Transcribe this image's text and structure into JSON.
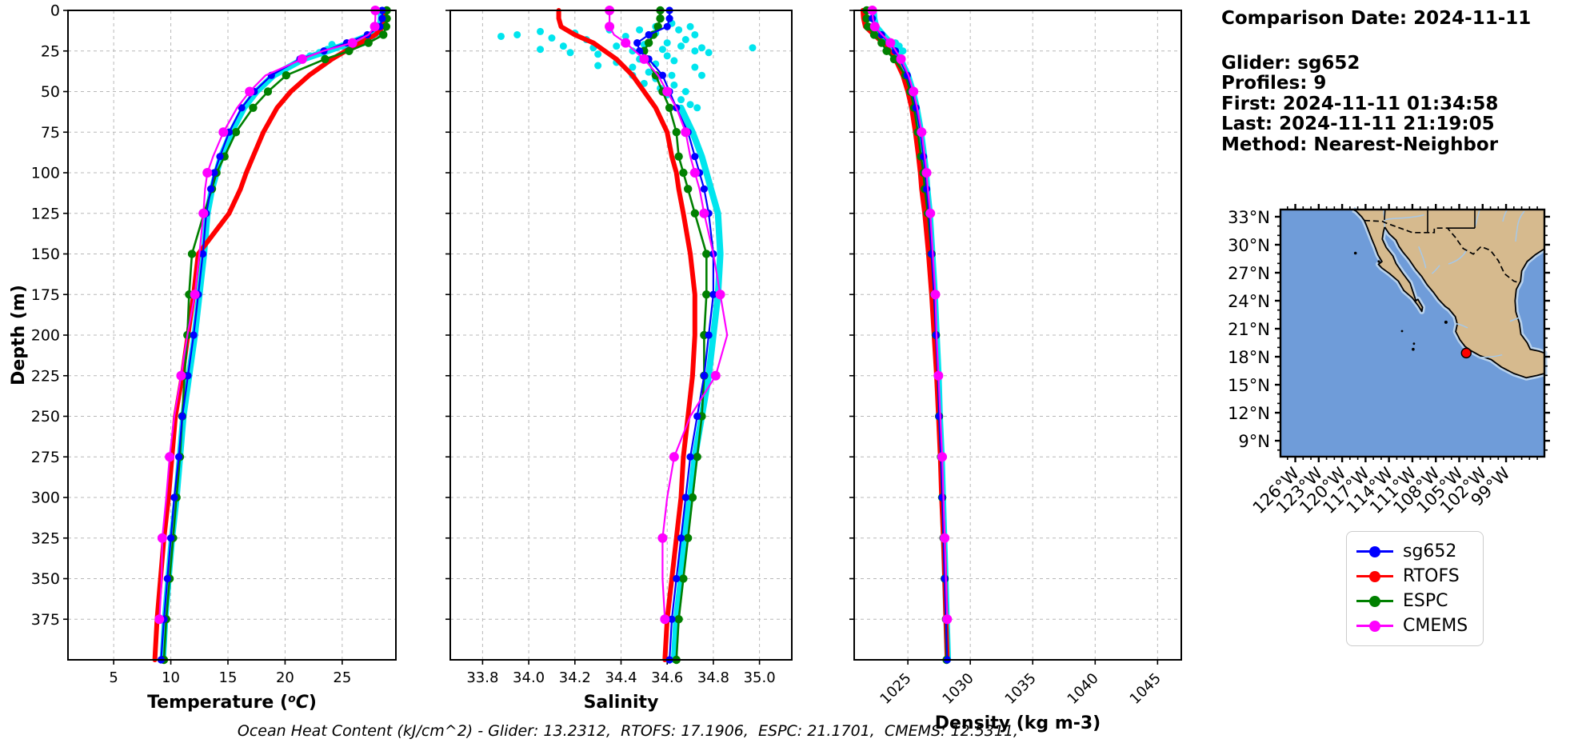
{
  "info_panel": {
    "comparison_date": "Comparison Date: 2024-11-11",
    "glider": "Glider: sg652",
    "profiles": "Profiles: 9",
    "first": "First: 2024-11-11 01:34:58",
    "last": "Last: 2024-11-11 21:19:05",
    "method": "Method: Nearest-Neighbor"
  },
  "footer": {
    "text": "Ocean Heat Content (kJ/cm^2) - Glider: 13.2312,  RTOFS: 17.1906,  ESPC: 21.1701,  CMEMS: 12.5311,"
  },
  "legend": {
    "position": "bottom-right",
    "items": [
      {
        "label": "sg652",
        "color": "#0000ff"
      },
      {
        "label": "RTOFS",
        "color": "#ff0000"
      },
      {
        "label": "ESPC",
        "color": "#008000"
      },
      {
        "label": "CMEMS",
        "color": "#ff00ff"
      }
    ]
  },
  "map": {
    "lat_ticks": [
      {
        "deg": 33,
        "label": "33°N"
      },
      {
        "deg": 30,
        "label": "30°N"
      },
      {
        "deg": 27,
        "label": "27°N"
      },
      {
        "deg": 24,
        "label": "24°N"
      },
      {
        "deg": 21,
        "label": "21°N"
      },
      {
        "deg": 18,
        "label": "18°N"
      },
      {
        "deg": 15,
        "label": "15°N"
      },
      {
        "deg": 12,
        "label": "12°N"
      },
      {
        "deg": 9,
        "label": "9°N"
      }
    ],
    "lon_ticks": [
      {
        "deg": 126,
        "label": "126°W"
      },
      {
        "deg": 123,
        "label": "123°W"
      },
      {
        "deg": 120,
        "label": "120°W"
      },
      {
        "deg": 117,
        "label": "117°W"
      },
      {
        "deg": 114,
        "label": "114°W"
      },
      {
        "deg": 111,
        "label": "111°W"
      },
      {
        "deg": 108,
        "label": "108°W"
      },
      {
        "deg": 105,
        "label": "105°W"
      },
      {
        "deg": 102,
        "label": "102°W"
      },
      {
        "deg": 99,
        "label": "99°W"
      }
    ],
    "marker": {
      "lon_w": 104.1,
      "lat_n": 18.4,
      "color": "#ff0000"
    },
    "colors": {
      "ocean": "#6f9cd9",
      "land": "#d6ba8e",
      "shelf": "#b9d2ec",
      "river": "#a6c8e8",
      "coast": "#000000"
    }
  },
  "chart_data": [
    {
      "id": "temperature",
      "type": "line",
      "xlabel": "Temperature (°C)",
      "ylabel": "Depth (m)",
      "xlim": [
        1.0,
        29.7
      ],
      "ylim": [
        400,
        0
      ],
      "grid": true,
      "xticks": [
        5,
        10,
        15,
        20,
        25
      ],
      "yticks": [
        0,
        25,
        50,
        75,
        100,
        125,
        150,
        175,
        200,
        225,
        250,
        275,
        300,
        325,
        350,
        375
      ],
      "depths": [
        0,
        5,
        10,
        15,
        20,
        25,
        30,
        40,
        50,
        60,
        75,
        90,
        100,
        110,
        125,
        150,
        175,
        200,
        225,
        250,
        275,
        300,
        325,
        350,
        375,
        400
      ],
      "series": [
        {
          "name": "glider-raw",
          "color": "#00e5ee",
          "width": 8,
          "marker": 0,
          "every": 1,
          "values": [
            28.4,
            28.4,
            28.3,
            27.5,
            25.7,
            23.7,
            21.6,
            19.0,
            17.5,
            16.4,
            15.3,
            14.4,
            14.0,
            13.6,
            13.2,
            12.9,
            12.5,
            12.1,
            11.6,
            11.1,
            10.8,
            10.5,
            10.1,
            9.8,
            9.5,
            9.3
          ]
        },
        {
          "name": "RTOFS",
          "color": "#ff0000",
          "width": 6,
          "marker": 0,
          "every": 1,
          "values": [
            28.7,
            28.7,
            28.6,
            27.9,
            26.6,
            25.3,
            24.1,
            22.1,
            20.5,
            19.3,
            18.1,
            17.2,
            16.6,
            16.1,
            15.1,
            12.4,
            12.0,
            11.5,
            11.0,
            10.4,
            10.1,
            9.8,
            9.4,
            9.1,
            8.8,
            8.6
          ]
        },
        {
          "name": "ESPC",
          "color": "#008000",
          "width": 2.6,
          "marker": 5.2,
          "every": 1,
          "values": [
            28.9,
            28.9,
            28.85,
            28.6,
            27.3,
            25.6,
            23.5,
            20.1,
            18.5,
            17.2,
            15.7,
            14.7,
            14.0,
            13.6,
            12.9,
            11.85,
            11.6,
            11.45,
            11.2,
            11.0,
            10.8,
            10.5,
            10.2,
            9.9,
            9.6,
            9.4
          ]
        },
        {
          "name": "sg652",
          "color": "#0000ff",
          "width": 2.2,
          "marker": 4.6,
          "every": 1,
          "values": [
            28.5,
            28.5,
            28.3,
            27.2,
            25.4,
            23.4,
            21.3,
            18.8,
            17.3,
            16.2,
            15.1,
            14.3,
            13.8,
            13.5,
            13.1,
            12.8,
            12.4,
            12.0,
            11.5,
            11.0,
            10.7,
            10.3,
            10.0,
            9.7,
            9.4,
            9.15
          ]
        },
        {
          "name": "CMEMS",
          "color": "#ff00ff",
          "width": 2.2,
          "marker": 6,
          "every": 2,
          "values": [
            27.9,
            27.9,
            27.85,
            27.3,
            25.9,
            23.3,
            21.5,
            18.3,
            16.9,
            15.8,
            14.6,
            13.7,
            13.2,
            13.0,
            12.85,
            12.5,
            12.1,
            11.45,
            10.9,
            10.3,
            9.9,
            9.6,
            9.25,
            9.2,
            9.0,
            null
          ]
        }
      ],
      "scatter": {
        "name": "glider-raw-scatter",
        "color": "#00e5ee",
        "size": 4.5,
        "points": [
          [
            28.1,
            14
          ],
          [
            27.6,
            16
          ],
          [
            27.0,
            18
          ],
          [
            26.4,
            19
          ],
          [
            25.7,
            21
          ],
          [
            26.8,
            20
          ],
          [
            25.1,
            22
          ],
          [
            24.4,
            23
          ],
          [
            23.7,
            24
          ],
          [
            24.1,
            21
          ],
          [
            23.0,
            26
          ],
          [
            22.2,
            28
          ]
        ]
      }
    },
    {
      "id": "salinity",
      "type": "line",
      "xlabel": "Salinity",
      "ylabel": "",
      "xlim": [
        33.66,
        35.14
      ],
      "ylim": [
        400,
        0
      ],
      "grid": true,
      "xticks": [
        33.8,
        34.0,
        34.2,
        34.4,
        34.6,
        34.8,
        35.0
      ],
      "yticks": [
        0,
        25,
        50,
        75,
        100,
        125,
        150,
        175,
        200,
        225,
        250,
        275,
        300,
        325,
        350,
        375
      ],
      "depths": [
        0,
        5,
        10,
        15,
        20,
        25,
        30,
        40,
        50,
        60,
        75,
        90,
        100,
        110,
        125,
        150,
        175,
        200,
        225,
        250,
        275,
        300,
        325,
        350,
        375,
        400
      ],
      "series": [
        {
          "name": "glider-raw",
          "color": "#00e5ee",
          "width": 8,
          "marker": 0,
          "every": 1,
          "values": [
            null,
            null,
            null,
            null,
            null,
            null,
            null,
            null,
            null,
            34.66,
            34.71,
            34.75,
            34.77,
            34.79,
            34.82,
            34.83,
            34.82,
            34.8,
            34.78,
            34.75,
            34.72,
            34.7,
            34.67,
            34.66,
            34.64,
            34.63
          ]
        },
        {
          "name": "RTOFS",
          "color": "#ff0000",
          "width": 6,
          "marker": 0,
          "every": 1,
          "values": [
            34.13,
            34.13,
            34.14,
            34.2,
            34.28,
            34.33,
            34.38,
            34.45,
            34.5,
            34.55,
            34.6,
            34.62,
            34.64,
            34.65,
            34.67,
            34.7,
            34.72,
            34.72,
            34.71,
            34.69,
            34.67,
            34.66,
            34.64,
            34.62,
            34.6,
            34.59
          ]
        },
        {
          "name": "ESPC",
          "color": "#008000",
          "width": 2.6,
          "marker": 5.2,
          "every": 1,
          "values": [
            34.57,
            34.57,
            34.56,
            34.54,
            34.52,
            34.5,
            34.51,
            34.55,
            34.58,
            34.61,
            34.64,
            34.65,
            34.67,
            34.69,
            34.72,
            34.77,
            34.77,
            34.76,
            34.76,
            34.75,
            34.73,
            34.71,
            34.69,
            34.67,
            34.65,
            34.64
          ]
        },
        {
          "name": "sg652",
          "color": "#0000ff",
          "width": 2.2,
          "marker": 4.6,
          "every": 1,
          "values": [
            34.61,
            34.61,
            34.6,
            34.52,
            34.47,
            34.48,
            34.52,
            34.58,
            34.61,
            34.64,
            34.69,
            34.72,
            34.74,
            34.76,
            34.78,
            34.8,
            34.8,
            34.78,
            34.76,
            34.73,
            34.7,
            34.68,
            34.66,
            34.64,
            34.62,
            34.61
          ]
        },
        {
          "name": "CMEMS",
          "color": "#ff00ff",
          "width": 2.2,
          "marker": 6,
          "every": 2,
          "values": [
            34.35,
            34.35,
            34.35,
            34.37,
            34.42,
            34.46,
            34.5,
            34.56,
            34.6,
            34.64,
            34.68,
            34.7,
            34.72,
            34.74,
            34.76,
            34.8,
            34.83,
            34.86,
            34.81,
            34.7,
            34.63,
            34.6,
            34.58,
            34.58,
            34.59,
            null
          ]
        }
      ],
      "scatter": {
        "name": "glider-raw-scatter",
        "color": "#00e5ee",
        "size": 4.5,
        "points": [
          [
            34.62,
            8
          ],
          [
            34.55,
            10
          ],
          [
            34.48,
            12
          ],
          [
            34.35,
            12
          ],
          [
            34.2,
            14
          ],
          [
            34.05,
            13
          ],
          [
            33.95,
            15
          ],
          [
            33.88,
            16
          ],
          [
            34.1,
            17
          ],
          [
            34.25,
            18
          ],
          [
            34.42,
            16
          ],
          [
            34.55,
            14
          ],
          [
            34.65,
            12
          ],
          [
            34.7,
            10
          ],
          [
            34.72,
            15
          ],
          [
            34.68,
            18
          ],
          [
            34.6,
            20
          ],
          [
            34.5,
            21
          ],
          [
            34.38,
            22
          ],
          [
            34.28,
            23
          ],
          [
            34.15,
            22
          ],
          [
            34.05,
            24
          ],
          [
            34.18,
            26
          ],
          [
            34.3,
            27
          ],
          [
            34.45,
            25
          ],
          [
            34.58,
            24
          ],
          [
            34.66,
            22
          ],
          [
            34.72,
            25
          ],
          [
            34.75,
            23
          ],
          [
            34.78,
            26
          ],
          [
            34.97,
            23
          ],
          [
            34.6,
            28
          ],
          [
            34.48,
            30
          ],
          [
            34.38,
            32
          ],
          [
            34.3,
            34
          ],
          [
            34.45,
            35
          ],
          [
            34.55,
            33
          ],
          [
            34.63,
            31
          ],
          [
            34.72,
            35
          ],
          [
            34.52,
            38
          ],
          [
            34.45,
            40
          ],
          [
            34.55,
            42
          ],
          [
            34.62,
            40
          ],
          [
            34.75,
            40
          ],
          [
            34.5,
            45
          ],
          [
            34.57,
            48
          ],
          [
            34.63,
            46
          ],
          [
            34.68,
            50
          ],
          [
            34.6,
            52
          ],
          [
            34.66,
            55
          ],
          [
            34.7,
            58
          ],
          [
            34.73,
            60
          ]
        ]
      }
    },
    {
      "id": "density",
      "type": "line",
      "xlabel": "Density (kg m-3)",
      "ylabel": "",
      "xlim": [
        1020.7,
        1046.9
      ],
      "ylim": [
        400,
        0
      ],
      "grid": true,
      "rotate_xticks": 45,
      "xticks": [
        1025,
        1030,
        1035,
        1040,
        1045
      ],
      "yticks": [
        0,
        25,
        50,
        75,
        100,
        125,
        150,
        175,
        200,
        225,
        250,
        275,
        300,
        325,
        350,
        375
      ],
      "depths": [
        0,
        5,
        10,
        15,
        20,
        25,
        30,
        40,
        50,
        60,
        75,
        90,
        100,
        110,
        125,
        150,
        175,
        200,
        225,
        250,
        275,
        300,
        325,
        350,
        375,
        400
      ],
      "series": [
        {
          "name": "glider-raw",
          "color": "#00e5ee",
          "width": 8,
          "marker": 0,
          "every": 1,
          "values": [
            1022.25,
            1022.3,
            1022.45,
            1023.0,
            1023.6,
            1024.05,
            1024.4,
            1025.0,
            1025.4,
            1025.7,
            1026.05,
            1026.3,
            1026.45,
            1026.55,
            1026.75,
            1026.95,
            1027.15,
            1027.3,
            1027.45,
            1027.55,
            1027.7,
            1027.8,
            1027.9,
            1028.0,
            1028.1,
            1028.2
          ]
        },
        {
          "name": "RTOFS",
          "color": "#ff0000",
          "width": 6,
          "marker": 0,
          "every": 1,
          "values": [
            1021.4,
            1021.45,
            1021.6,
            1022.3,
            1023.0,
            1023.55,
            1024.0,
            1024.6,
            1025.0,
            1025.3,
            1025.6,
            1025.85,
            1026.0,
            1026.1,
            1026.35,
            1026.65,
            1026.9,
            1027.1,
            1027.3,
            1027.45,
            1027.6,
            1027.7,
            1027.85,
            1027.95,
            1028.05,
            1028.15
          ]
        },
        {
          "name": "ESPC",
          "color": "#008000",
          "width": 2.6,
          "marker": 5.2,
          "every": 1,
          "values": [
            1021.7,
            1021.7,
            1021.8,
            1022.3,
            1022.9,
            1023.3,
            1023.9,
            1024.8,
            1025.2,
            1025.5,
            1025.8,
            1026.05,
            1026.25,
            1026.35,
            1026.6,
            1026.9,
            1027.1,
            1027.25,
            1027.4,
            1027.5,
            1027.65,
            1027.75,
            1027.85,
            1027.95,
            1028.05,
            1028.1
          ]
        },
        {
          "name": "sg652",
          "color": "#0000ff",
          "width": 2.2,
          "marker": 4.6,
          "every": 1,
          "values": [
            1022.1,
            1022.15,
            1022.3,
            1022.9,
            1023.5,
            1024.0,
            1024.35,
            1024.95,
            1025.35,
            1025.65,
            1026.0,
            1026.25,
            1026.4,
            1026.5,
            1026.7,
            1026.9,
            1027.1,
            1027.25,
            1027.4,
            1027.5,
            1027.65,
            1027.75,
            1027.85,
            1027.95,
            1028.05,
            1028.15
          ]
        },
        {
          "name": "CMEMS",
          "color": "#ff00ff",
          "width": 2.2,
          "marker": 6,
          "every": 2,
          "values": [
            1022.15,
            1022.2,
            1022.35,
            1022.95,
            1023.6,
            1024.05,
            1024.45,
            1025.05,
            1025.45,
            1025.75,
            1026.1,
            1026.35,
            1026.5,
            1026.6,
            1026.8,
            1027.0,
            1027.2,
            1027.3,
            1027.45,
            1027.6,
            1027.75,
            1027.85,
            1027.95,
            1028.05,
            1028.15,
            null
          ]
        }
      ],
      "scatter": {
        "name": "glider-raw-scatter",
        "color": "#00e5ee",
        "size": 4.5,
        "points": [
          [
            1024.3,
            22
          ],
          [
            1024.6,
            25
          ],
          [
            1024.0,
            20
          ]
        ]
      }
    }
  ]
}
